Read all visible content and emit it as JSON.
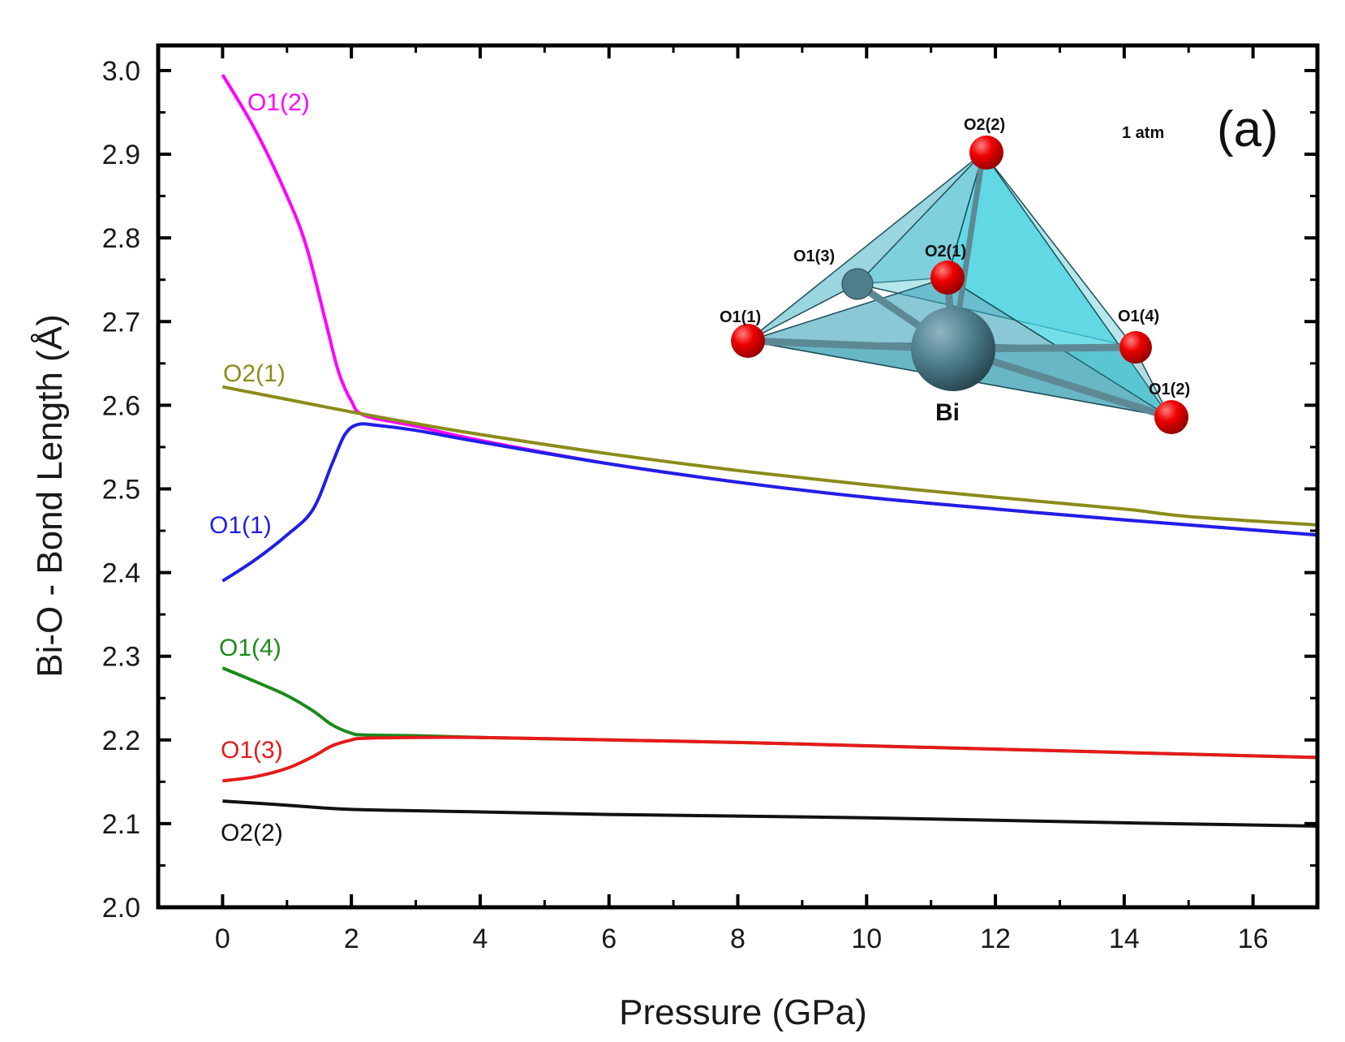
{
  "chart_data": {
    "type": "line",
    "xlabel": "Pressure (GPa)",
    "ylabel": "Bi-O - Bond Length (Å)",
    "xlim": [
      -1,
      17
    ],
    "ylim": [
      2.0,
      3.03
    ],
    "xticks": [
      0,
      2,
      4,
      6,
      8,
      10,
      12,
      14,
      16
    ],
    "yticks": [
      2.0,
      2.1,
      2.2,
      2.3,
      2.4,
      2.5,
      2.6,
      2.7,
      2.8,
      2.9,
      3.0
    ],
    "xtick_labels": [
      "0",
      "2",
      "4",
      "6",
      "8",
      "10",
      "12",
      "14",
      "16"
    ],
    "ytick_labels": [
      "2.0",
      "2.1",
      "2.2",
      "2.3",
      "2.4",
      "2.5",
      "2.6",
      "2.7",
      "2.8",
      "2.9",
      "3.0"
    ],
    "grid": false,
    "panel_label": "(a)",
    "series": [
      {
        "name": "O1(2)",
        "color": "#ff00ff",
        "x": [
          0,
          0.5,
          1.0,
          1.3,
          1.6,
          1.8,
          2.0,
          2.2,
          3,
          4,
          6,
          8,
          10,
          12,
          14,
          17
        ],
        "y": [
          2.995,
          2.93,
          2.85,
          2.79,
          2.7,
          2.64,
          2.605,
          2.588,
          2.575,
          2.558,
          2.53,
          2.508,
          2.49,
          2.476,
          2.463,
          2.445
        ]
      },
      {
        "name": "O2(1)",
        "color": "#8b8b1a",
        "x": [
          0,
          1,
          2,
          3,
          4,
          6,
          8,
          10,
          12,
          14,
          15,
          17
        ],
        "y": [
          2.622,
          2.607,
          2.592,
          2.578,
          2.565,
          2.542,
          2.522,
          2.505,
          2.49,
          2.476,
          2.467,
          2.457
        ]
      },
      {
        "name": "O1(1)",
        "color": "#1f1fe6",
        "x": [
          0,
          0.5,
          1.0,
          1.4,
          1.7,
          1.9,
          2.1,
          2.4,
          3,
          4,
          6,
          8,
          10,
          12,
          14,
          17
        ],
        "y": [
          2.39,
          2.415,
          2.445,
          2.475,
          2.53,
          2.565,
          2.577,
          2.576,
          2.57,
          2.556,
          2.53,
          2.508,
          2.49,
          2.476,
          2.463,
          2.445
        ]
      },
      {
        "name": "O1(4)",
        "color": "#1a8a1a",
        "x": [
          0,
          0.5,
          1.0,
          1.4,
          1.7,
          2.0,
          2.2,
          3,
          4,
          6,
          8,
          10,
          12,
          14,
          17
        ],
        "y": [
          2.286,
          2.27,
          2.253,
          2.235,
          2.218,
          2.208,
          2.206,
          2.205,
          2.203,
          2.2,
          2.197,
          2.193,
          2.189,
          2.185,
          2.179
        ]
      },
      {
        "name": "O1(3)",
        "color": "#e61a1a",
        "x": [
          0,
          0.5,
          1.0,
          1.4,
          1.7,
          2.0,
          2.2,
          3,
          4,
          6,
          8,
          10,
          12,
          14,
          17
        ],
        "y": [
          2.151,
          2.156,
          2.166,
          2.18,
          2.193,
          2.2,
          2.202,
          2.203,
          2.203,
          2.2,
          2.197,
          2.193,
          2.189,
          2.185,
          2.179
        ]
      },
      {
        "name": "O2(2)",
        "color": "#111111",
        "x": [
          0,
          1,
          2,
          4,
          6,
          8,
          10,
          12,
          14,
          17
        ],
        "y": [
          2.127,
          2.122,
          2.117,
          2.114,
          2.111,
          2.109,
          2.107,
          2.104,
          2.101,
          2.097
        ]
      }
    ],
    "inset": {
      "condition": "1 atm",
      "center_atom": "Bi",
      "atom_labels": [
        "O2(2)",
        "O1(3)",
        "O2(1)",
        "O1(1)",
        "O1(4)",
        "O1(2)"
      ],
      "polyhedron_color": "#3fb6c9",
      "oxygen_color": "#e60000",
      "bismuth_color": "#4f7f8f"
    }
  }
}
